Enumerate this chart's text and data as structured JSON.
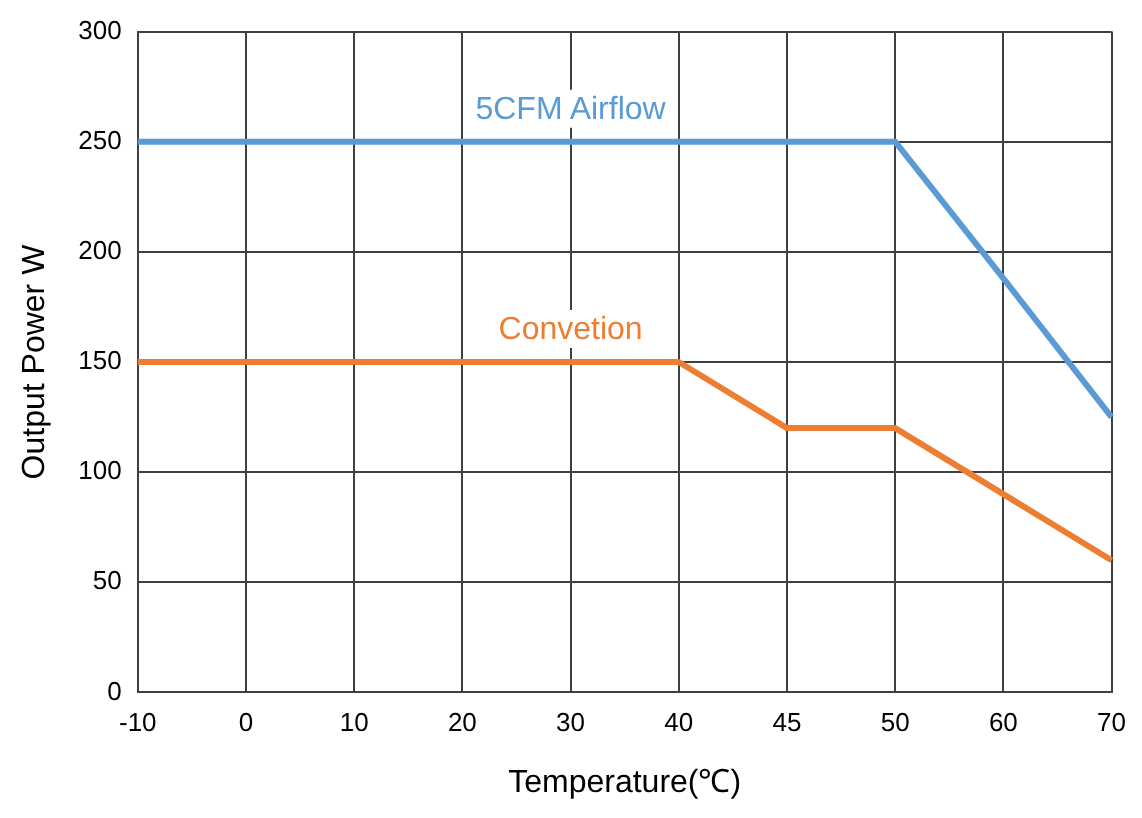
{
  "chart_data": {
    "type": "line",
    "xlabel": "Temperature(℃)",
    "ylabel": "Output Power W",
    "categories": [
      "-10",
      "0",
      "10",
      "20",
      "30",
      "40",
      "45",
      "50",
      "60",
      "70"
    ],
    "series": [
      {
        "name": "5CFM Airflow",
        "color": "#5b9bd5",
        "values": [
          250,
          250,
          250,
          250,
          250,
          250,
          250,
          250,
          188,
          125
        ]
      },
      {
        "name": "Convetion",
        "color": "#ed7d31",
        "values": [
          150,
          150,
          150,
          150,
          150,
          150,
          120,
          120,
          90,
          60
        ]
      }
    ],
    "ylim": [
      0,
      300
    ],
    "yticks": [
      0,
      50,
      100,
      150,
      200,
      250,
      300
    ],
    "grid": true,
    "legend": false,
    "marker": "none",
    "line_style": "solid"
  }
}
